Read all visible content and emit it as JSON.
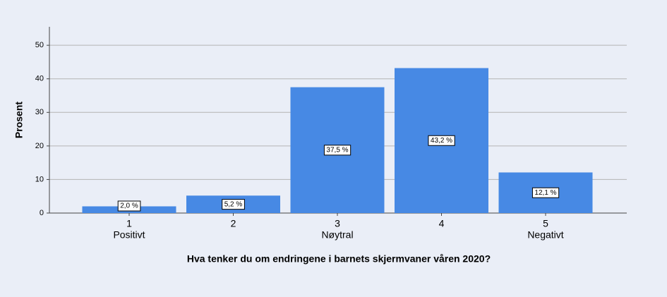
{
  "chart_data": {
    "type": "bar",
    "y_label": "Prosent",
    "x_label": "Hva tenker du om endringene i barnets skjermvaner våren 2020?",
    "categories": [
      "1",
      "2",
      "3",
      "4",
      "5"
    ],
    "category_sublabels": [
      "Positivt",
      null,
      "Nøytral",
      null,
      "Negativt"
    ],
    "values": [
      2.0,
      5.2,
      37.5,
      43.2,
      12.1
    ],
    "value_labels": [
      "2,0 %",
      "5,2 %",
      "37,5 %",
      "43,2 %",
      "12,1 %"
    ],
    "color": "#4789e4",
    "ylim": [
      0,
      55.5
    ],
    "yticks": [
      0,
      10,
      20,
      30,
      40,
      50
    ],
    "grid": true
  }
}
